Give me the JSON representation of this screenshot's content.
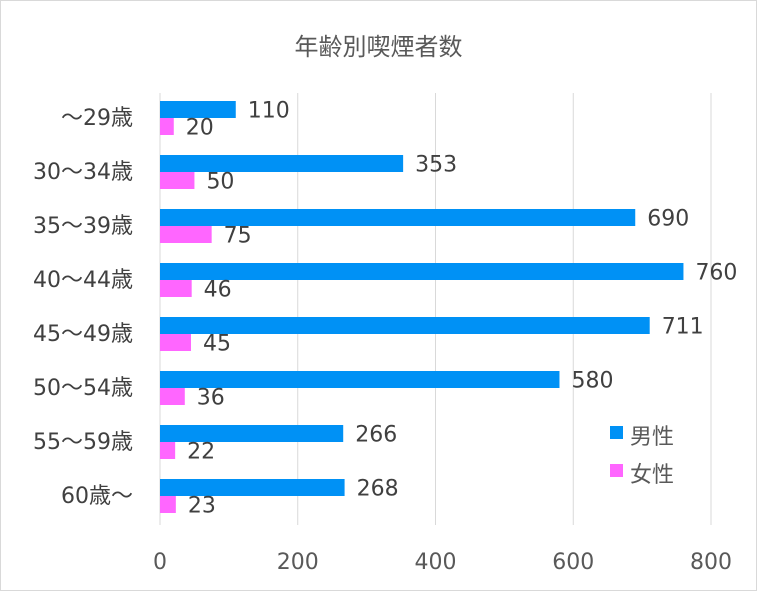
{
  "chart_data": {
    "type": "bar",
    "orientation": "horizontal",
    "title": "年齢別喫煙者数",
    "categories": [
      "〜29歳",
      "30〜34歳",
      "35〜39歳",
      "40〜44歳",
      "45〜49歳",
      "50〜54歳",
      "55〜59歳",
      "60歳〜"
    ],
    "series": [
      {
        "name": "男性",
        "color": "#0091F5",
        "values": [
          110,
          353,
          690,
          760,
          711,
          580,
          266,
          268
        ]
      },
      {
        "name": "女性",
        "color": "#FF66FF",
        "values": [
          20,
          50,
          75,
          46,
          45,
          36,
          22,
          23
        ]
      }
    ],
    "xlim": [
      0,
      800
    ],
    "x_ticks": [
      0,
      200,
      400,
      600,
      800
    ],
    "grid": true,
    "data_labels": true,
    "legend_position": "right"
  }
}
